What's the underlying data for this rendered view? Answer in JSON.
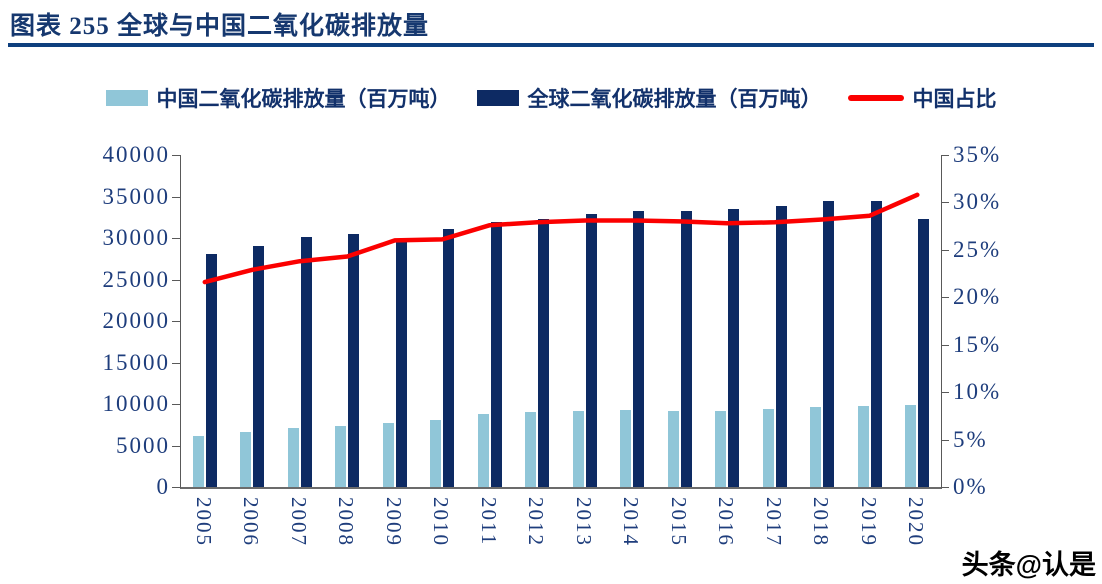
{
  "page": {
    "title": "图表 255 全球与中国二氧化碳排放量",
    "watermark": "头条@认是"
  },
  "colors": {
    "china_bar": "#90c6d8",
    "global_bar": "#0d2a63",
    "ratio_line": "#fb0000",
    "title_text": "#16386f",
    "axis_text": "#1e3d7c",
    "rule": "#0e3f7e"
  },
  "legend": [
    {
      "label": "中国二氧化碳排放量（百万吨）",
      "type": "swatch",
      "color": "#90c6d8"
    },
    {
      "label": "全球二氧化碳排放量（百万吨）",
      "type": "swatch",
      "color": "#0d2a63"
    },
    {
      "label": "中国占比",
      "type": "line",
      "color": "#fb0000"
    }
  ],
  "chart_data": {
    "type": "bar+line",
    "title": "图表 255 全球与中国二氧化碳排放量",
    "categories": [
      "2005",
      "2006",
      "2007",
      "2008",
      "2009",
      "2010",
      "2011",
      "2012",
      "2013",
      "2014",
      "2015",
      "2016",
      "2017",
      "2018",
      "2019",
      "2020"
    ],
    "series": [
      {
        "name": "中国二氧化碳排放量（百万吨）",
        "type": "bar",
        "axis": "left",
        "color": "#90c6d8",
        "values": [
          6100,
          6600,
          7100,
          7400,
          7750,
          8100,
          8850,
          9000,
          9200,
          9250,
          9200,
          9200,
          9400,
          9600,
          9800,
          9900
        ]
      },
      {
        "name": "全球二氧化碳排放量（百万吨）",
        "type": "bar",
        "axis": "left",
        "color": "#0d2a63",
        "values": [
          28100,
          29050,
          30100,
          30450,
          29800,
          31100,
          31900,
          32350,
          32900,
          33250,
          33250,
          33500,
          33850,
          34400,
          34500,
          32300
        ]
      },
      {
        "name": "中国占比",
        "type": "line",
        "axis": "right",
        "color": "#fb0000",
        "values_pct": [
          21.6,
          22.9,
          23.8,
          24.3,
          26.0,
          26.1,
          27.6,
          27.9,
          28.1,
          28.1,
          28.0,
          27.8,
          27.9,
          28.2,
          28.6,
          30.8
        ]
      }
    ],
    "left_axis": {
      "min": 0,
      "max": 40000,
      "step": 5000
    },
    "right_axis": {
      "min": 0,
      "max": 35,
      "step": 5,
      "suffix": "%"
    },
    "grid": false,
    "legend_position": "top"
  }
}
